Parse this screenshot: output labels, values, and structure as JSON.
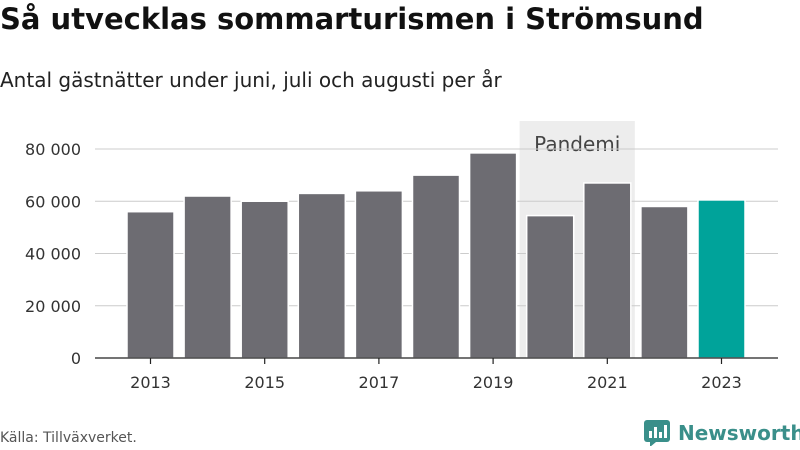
{
  "header": {
    "title": "Så utvecklas sommarturismen i Strömsund",
    "subtitle": "Antal gästnätter under juni, juli och augusti per år"
  },
  "footer": {
    "source": "Källa: Tillväxverket.",
    "brand": "Newsworthy"
  },
  "colors": {
    "bar": "#6d6c72",
    "highlight": "#00a39a",
    "band": "#ededed",
    "grid": "#cccccc",
    "brand": "#3a8f8a"
  },
  "chart_data": {
    "type": "bar",
    "title": "Så utvecklas sommarturismen i Strömsund",
    "subtitle": "Antal gästnätter under juni, juli och augusti per år",
    "categories": [
      "2013",
      "2014",
      "2015",
      "2016",
      "2017",
      "2018",
      "2019",
      "2020",
      "2021",
      "2022",
      "2023"
    ],
    "values": [
      56000,
      62000,
      60000,
      63000,
      64000,
      70000,
      78500,
      54500,
      67000,
      58000,
      60500
    ],
    "highlight_category": "2023",
    "ylim": [
      0,
      80000
    ],
    "yticks": [
      0,
      20000,
      40000,
      60000,
      80000
    ],
    "ytick_labels": [
      "0",
      "20 000",
      "40 000",
      "60 000",
      "80 000"
    ],
    "xtick_labels": [
      "2013",
      "2015",
      "2017",
      "2019",
      "2021",
      "2023"
    ],
    "grid": true,
    "annotation": {
      "label": "Pandemi",
      "from": "2020",
      "to": "2021"
    }
  }
}
